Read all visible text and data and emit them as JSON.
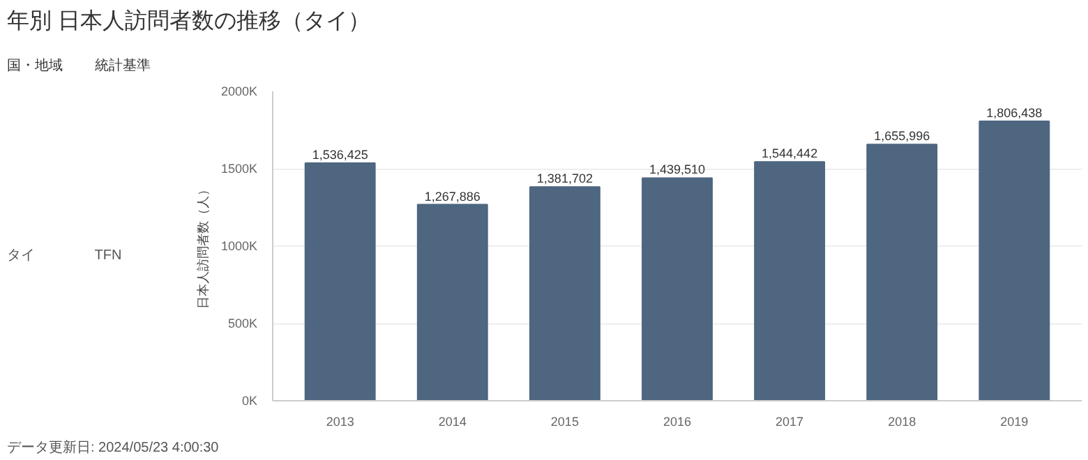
{
  "chart_data": {
    "type": "bar",
    "title": "年別 日本人訪問者数の推移（タイ）",
    "ylabel": "日本人訪問者数（人）",
    "categories": [
      "2013",
      "2014",
      "2015",
      "2016",
      "2017",
      "2018",
      "2019"
    ],
    "values": [
      1536425,
      1267886,
      1381702,
      1439510,
      1544442,
      1655996,
      1806438
    ],
    "color": "#4e6680",
    "ylim": [
      0,
      2000000
    ],
    "yticks": [
      {
        "value": 0,
        "label": "0K"
      },
      {
        "value": 500000,
        "label": "500K"
      },
      {
        "value": 1000000,
        "label": "1000K"
      },
      {
        "value": 1500000,
        "label": "1500K"
      },
      {
        "value": 2000000,
        "label": "2000K"
      }
    ],
    "value_labels": [
      "1,536,425",
      "1,267,886",
      "1,381,702",
      "1,439,510",
      "1,544,442",
      "1,655,996",
      "1,806,438"
    ],
    "grid": "y",
    "annotations": [
      "国・地域",
      "統計基準",
      "タイ",
      "TFN",
      "データ更新日: 2024/05/23 4:00:30"
    ]
  }
}
